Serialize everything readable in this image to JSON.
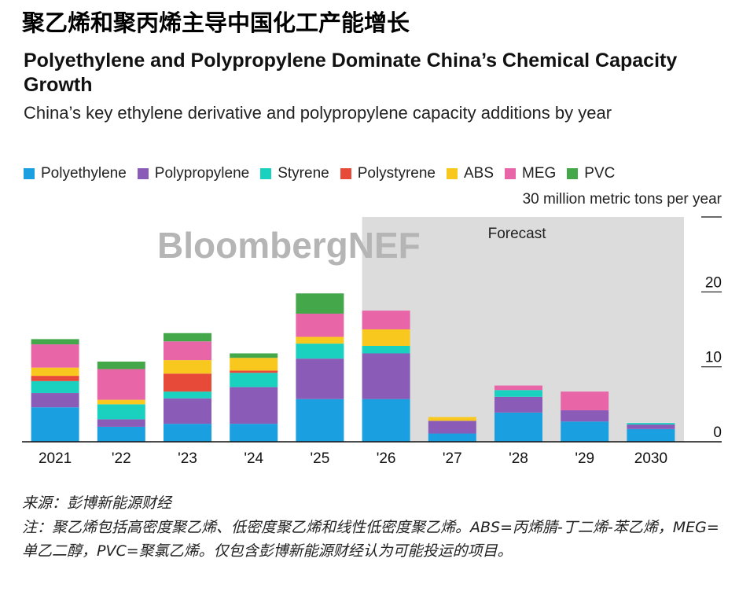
{
  "header": {
    "cn_title": "聚乙烯和聚丙烯主导中国化工产能增长",
    "en_title": "Polyethylene and Polypropylene Dominate China’s Chemical Capacity Growth",
    "subtitle": "China’s key ethylene derivative and polypropylene capacity additions by year"
  },
  "watermark": "BloombergNEF",
  "colors": {
    "Polyethylene": "#1aa0e0",
    "Polypropylene": "#8a5cb8",
    "Styrene": "#1ad1c0",
    "Polystyrene": "#e84a3a",
    "ABS": "#f8c81e",
    "MEG": "#e866a8",
    "PVC": "#44a84a",
    "forecast_bg": "#dcdcdc"
  },
  "chart_data": {
    "type": "bar",
    "stacked": true,
    "categories": [
      "2021",
      "'22",
      "'23",
      "'24",
      "'25",
      "'26",
      "'27",
      "'28",
      "'29",
      "2030"
    ],
    "unit_label": "30 million metric tons per year",
    "forecast_label": "Forecast",
    "forecast_start_category": "'26",
    "ylim": [
      0,
      30
    ],
    "yticks": [
      0,
      10,
      20,
      30
    ],
    "ytick_labels": [
      "0",
      "10",
      "20",
      ""
    ],
    "legend_position": "top",
    "series": [
      {
        "name": "Polyethylene",
        "values": [
          4.6,
          2.0,
          2.4,
          2.4,
          5.7,
          5.7,
          1.1,
          3.9,
          2.7,
          1.7
        ]
      },
      {
        "name": "Polypropylene",
        "values": [
          1.9,
          1.0,
          3.4,
          4.9,
          5.4,
          6.1,
          1.7,
          2.1,
          1.5,
          0.6
        ]
      },
      {
        "name": "Styrene",
        "values": [
          1.6,
          2.0,
          0.9,
          1.9,
          2.0,
          1.0,
          0,
          0.9,
          0,
          0.2
        ]
      },
      {
        "name": "Polystyrene",
        "values": [
          0.7,
          0,
          2.4,
          0.3,
          0,
          0,
          0,
          0,
          0,
          0
        ]
      },
      {
        "name": "ABS",
        "values": [
          1.1,
          0.6,
          1.8,
          1.7,
          0.9,
          2.2,
          0.5,
          0,
          0,
          0
        ]
      },
      {
        "name": "MEG",
        "values": [
          3.1,
          4.1,
          2.5,
          0,
          3.1,
          2.5,
          0,
          0.6,
          2.5,
          0
        ]
      },
      {
        "name": "PVC",
        "values": [
          0.7,
          1.0,
          1.1,
          0.6,
          2.7,
          0,
          0,
          0,
          0,
          0
        ]
      }
    ]
  },
  "footer": {
    "source": "来源：彭博新能源财经",
    "note": "注：聚乙烯包括高密度聚乙烯、低密度聚乙烯和线性低密度聚乙烯。ABS=丙烯腈-丁二烯-苯乙烯，MEG=单乙二醇，PVC=聚氯乙烯。仅包含彭博新能源财经认为可能投运的项目。"
  }
}
